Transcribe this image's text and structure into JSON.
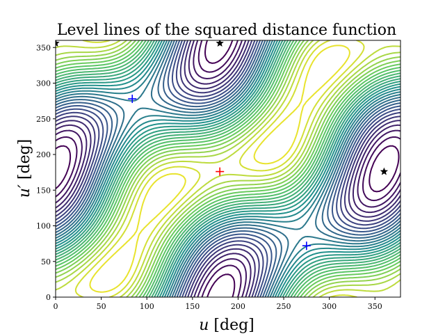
{
  "chart_data": {
    "type": "contour",
    "title": "Level lines of the squared distance function",
    "xlabel_var": "u",
    "xlabel_unit": " [deg]",
    "ylabel_var": "u′",
    "ylabel_unit": " [deg]",
    "xlim": [
      0,
      378
    ],
    "ylim": [
      0,
      360
    ],
    "xticks": [
      0,
      50,
      100,
      150,
      200,
      250,
      300,
      350
    ],
    "yticks": [
      0,
      50,
      100,
      150,
      200,
      250,
      300,
      350
    ],
    "grid": false,
    "colormap": [
      "#440154",
      "#3b528b",
      "#21918c",
      "#5ec962",
      "#fde725"
    ],
    "contour_levels": 30,
    "minimum": {
      "x": 180,
      "y": 176,
      "marker": "plus",
      "color": "#ff0000"
    },
    "saddles": [
      {
        "x": 84,
        "y": 278,
        "marker": "plus",
        "color": "#0000ff"
      },
      {
        "x": 275,
        "y": 72,
        "marker": "plus",
        "color": "#0000ff"
      }
    ],
    "maxima": [
      {
        "x": 0,
        "y": 356,
        "marker": "star",
        "color": "#000000"
      },
      {
        "x": 180,
        "y": 356,
        "marker": "star",
        "color": "#000000"
      },
      {
        "x": 360,
        "y": 176,
        "marker": "star",
        "color": "#000000"
      }
    ]
  }
}
